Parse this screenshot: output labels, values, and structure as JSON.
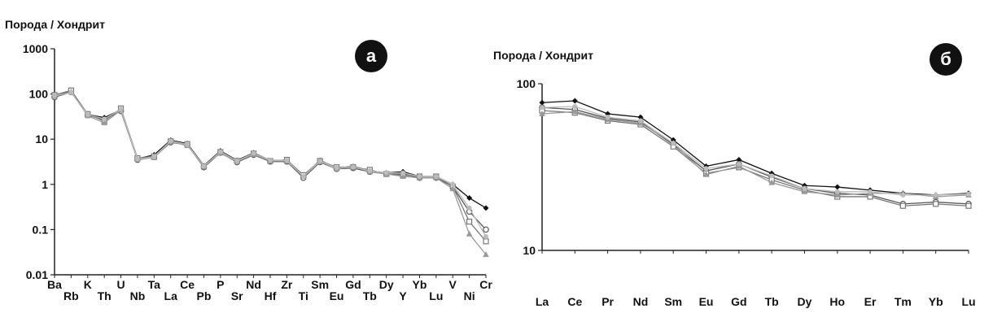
{
  "chart_data": [
    {
      "type": "line",
      "ylabel": "Порода / Хондрит",
      "panel_label": "а",
      "yscale": "log",
      "ylim": [
        0.01,
        1000
      ],
      "y_ticks": [
        "1000",
        "100",
        "10",
        "1",
        "0.1",
        "0.01"
      ],
      "categories": [
        "Ba",
        "Rb",
        "K",
        "Th",
        "U",
        "Nb",
        "Ta",
        "La",
        "Ce",
        "Pb",
        "P",
        "Sr",
        "Nd",
        "Hf",
        "Zr",
        "Ti",
        "Sm",
        "Eu",
        "Gd",
        "Tb",
        "Dy",
        "Y",
        "Yb",
        "Lu",
        "V",
        "Ni",
        "Cr"
      ],
      "series": [
        {
          "values": [
            90,
            115,
            35,
            30,
            45,
            3.7,
            4.5,
            9.5,
            8,
            2.6,
            5.5,
            3.4,
            5,
            3.4,
            3.4,
            1.5,
            3.4,
            2.3,
            2.5,
            2.0,
            1.8,
            1.9,
            1.5,
            1.5,
            1.0,
            0.5,
            0.3
          ]
        },
        {
          "values": [
            85,
            110,
            34,
            27,
            42,
            3.5,
            4.0,
            8.5,
            7.5,
            2.4,
            5.0,
            3.1,
            4.5,
            3.2,
            3.2,
            1.4,
            3.1,
            2.2,
            2.3,
            1.9,
            1.7,
            1.7,
            1.4,
            1.4,
            0.9,
            0.25,
            0.1
          ]
        },
        {
          "values": [
            95,
            120,
            36,
            25,
            48,
            3.8,
            4.2,
            9.0,
            7.8,
            2.5,
            5.2,
            3.3,
            4.8,
            3.3,
            3.5,
            1.6,
            3.3,
            2.4,
            2.4,
            2.1,
            1.7,
            1.6,
            1.5,
            1.5,
            0.9,
            0.15,
            0.055
          ]
        },
        {
          "values": [
            88,
            112,
            33,
            23,
            44,
            3.6,
            3.9,
            8.8,
            7.2,
            2.6,
            4.9,
            3.2,
            4.6,
            3.3,
            3.3,
            1.5,
            3.2,
            2.2,
            2.5,
            1.9,
            1.7,
            1.5,
            1.4,
            1.4,
            0.8,
            0.08,
            0.028
          ]
        },
        {
          "values": [
            92,
            108,
            35,
            28,
            46,
            3.6,
            4.1,
            9.2,
            7.6,
            2.5,
            5.3,
            3.3,
            4.9,
            3.4,
            3.4,
            1.5,
            3.3,
            2.3,
            2.4,
            2.0,
            1.8,
            1.8,
            1.5,
            1.5,
            1.0,
            0.3,
            0.07
          ]
        }
      ]
    },
    {
      "type": "line",
      "ylabel": "Порода / Хондрит",
      "panel_label": "б",
      "yscale": "log",
      "ylim": [
        10,
        100
      ],
      "y_ticks": [
        "100",
        "10"
      ],
      "categories": [
        "La",
        "Ce",
        "Pr",
        "Nd",
        "Sm",
        "Eu",
        "Gd",
        "Tb",
        "Dy",
        "Ho",
        "Er",
        "Tm",
        "Yb",
        "Lu"
      ],
      "series": [
        {
          "values": [
            77,
            79,
            66,
            63,
            46,
            32,
            35,
            29,
            24.5,
            24,
            23,
            22,
            21.5,
            22
          ]
        },
        {
          "values": [
            72,
            70,
            62,
            59,
            43,
            30,
            33,
            27.5,
            23.5,
            22,
            21.5,
            19,
            19.5,
            19
          ]
        },
        {
          "values": [
            69,
            67,
            60,
            57,
            42,
            29,
            31.5,
            26.5,
            23,
            21,
            21,
            18.5,
            19,
            18.5
          ]
        },
        {
          "values": [
            66,
            68,
            61,
            58,
            44,
            28.5,
            32,
            25.5,
            22.5,
            21.5,
            22,
            22,
            21,
            21.5
          ]
        },
        {
          "values": [
            72,
            73,
            63,
            60,
            44,
            31,
            33,
            28,
            23.5,
            22.5,
            22.5,
            21.5,
            21.5,
            21.8
          ]
        }
      ]
    }
  ]
}
